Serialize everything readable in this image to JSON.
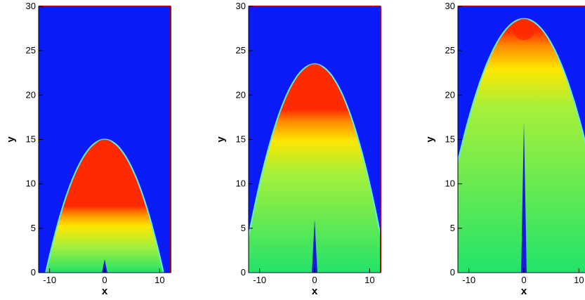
{
  "chart_data": [
    {
      "type": "heatmap",
      "xlabel": "x",
      "ylabel": "y",
      "xlim": [
        -12,
        12
      ],
      "ylim": [
        0,
        30
      ],
      "xticks": [
        -10,
        0,
        10
      ],
      "yticks": [
        0,
        5,
        10,
        15,
        20,
        25,
        30
      ],
      "front_apex_y": 15,
      "front_base_halfwidth": 10.7,
      "colors": {
        "background": "#0a1cf5",
        "hot": "#ff2a00",
        "mid": "#ffe600",
        "cool": "#22e36a",
        "core": "#1a1ad8"
      }
    },
    {
      "type": "heatmap",
      "xlabel": "x",
      "ylabel": "y",
      "xlim": [
        -12,
        12
      ],
      "ylim": [
        0,
        30
      ],
      "xticks": [
        -10,
        0,
        10
      ],
      "yticks": [
        0,
        5,
        10,
        15,
        20,
        25,
        30
      ],
      "front_apex_y": 23.5,
      "front_base_halfwidth": 13.2,
      "colors": {
        "background": "#0a1cf5",
        "hot": "#ff2a00",
        "mid": "#ffe600",
        "cool": "#22e36a",
        "core": "#1a1ad8"
      }
    },
    {
      "type": "heatmap",
      "xlabel": "x",
      "ylabel": "y",
      "xlim": [
        -12,
        12
      ],
      "ylim": [
        0,
        30
      ],
      "xticks": [
        -10,
        0,
        10
      ],
      "yticks": [
        0,
        5,
        10,
        15,
        20,
        25,
        30
      ],
      "front_apex_y": 28.6,
      "front_base_halfwidth": 16,
      "colors": {
        "background": "#0a1cf5",
        "hot": "#ff2a00",
        "mid": "#ffe600",
        "cool": "#22e36a",
        "core": "#1a1ad8"
      }
    }
  ]
}
